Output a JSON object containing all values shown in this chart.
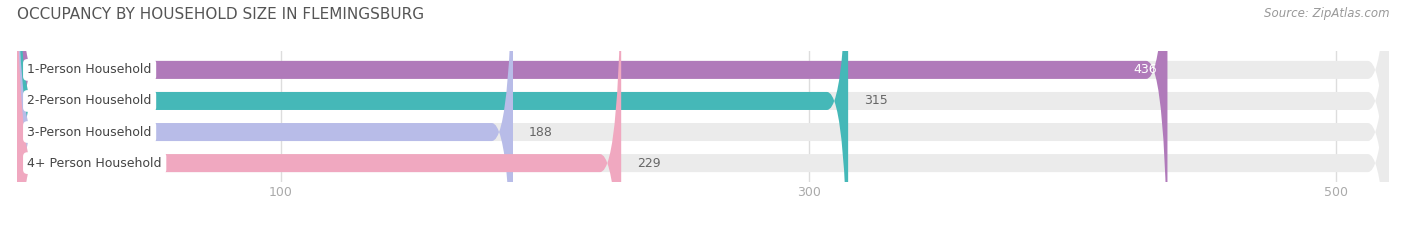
{
  "title": "OCCUPANCY BY HOUSEHOLD SIZE IN FLEMINGSBURG",
  "source": "Source: ZipAtlas.com",
  "categories": [
    "1-Person Household",
    "2-Person Household",
    "3-Person Household",
    "4+ Person Household"
  ],
  "values": [
    436,
    315,
    188,
    229
  ],
  "bar_colors": [
    "#b07aba",
    "#45b8b8",
    "#b8bce8",
    "#f0a8c0"
  ],
  "xlim_max": 520,
  "xticks": [
    100,
    300,
    500
  ],
  "background_color": "#ffffff",
  "bar_bg_color": "#ebebeb",
  "title_fontsize": 11,
  "label_fontsize": 9,
  "value_fontsize": 9,
  "source_fontsize": 8.5,
  "title_color": "#555555",
  "label_text_color": "#444444",
  "value_text_color_inside": "#ffffff",
  "value_text_color_outside": "#666666",
  "tick_color": "#aaaaaa",
  "grid_color": "#dddddd"
}
